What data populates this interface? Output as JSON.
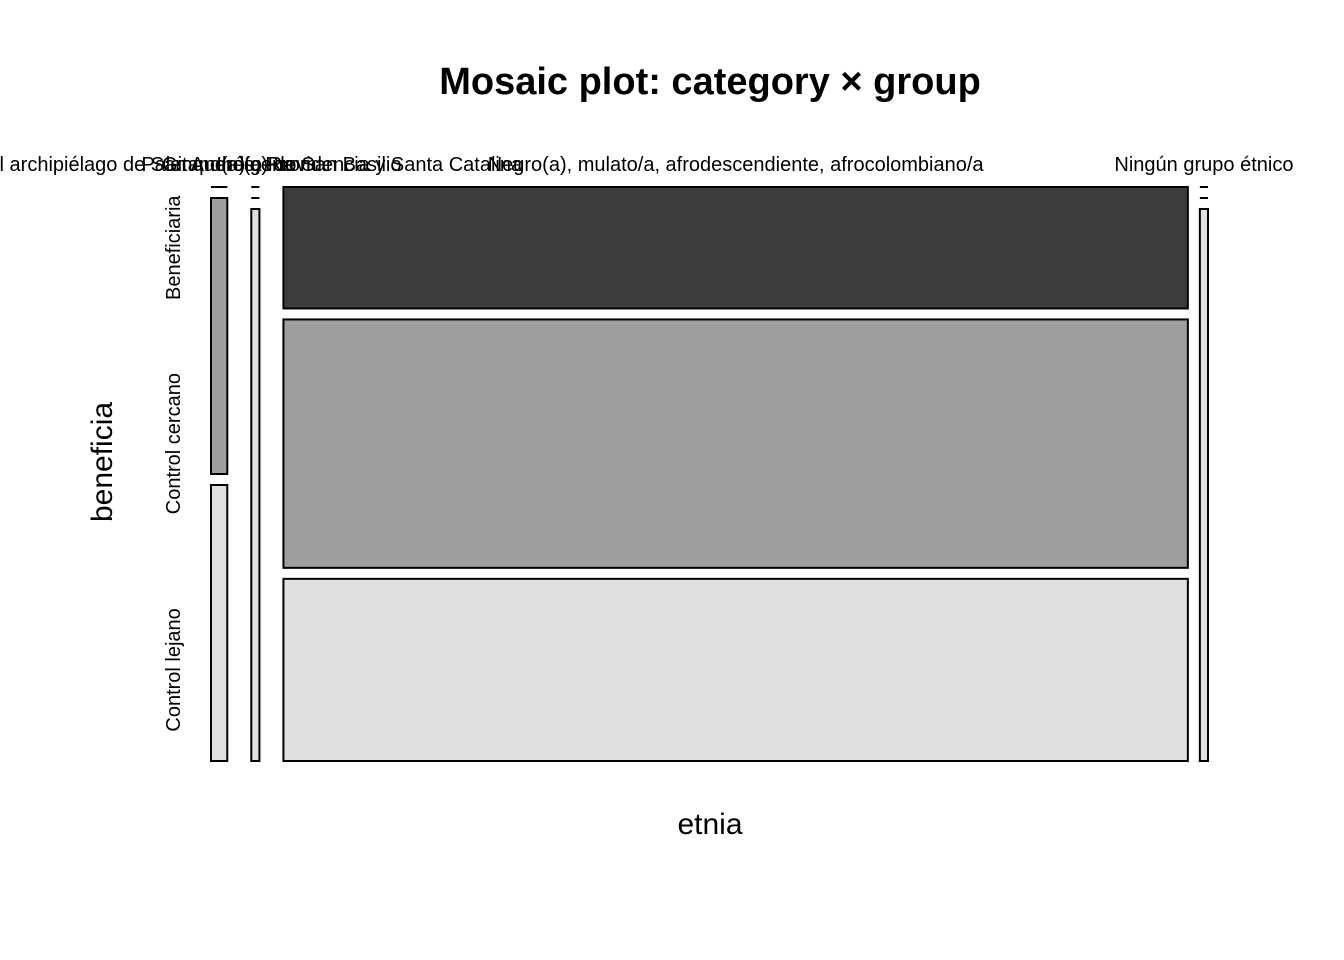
{
  "chart_data": {
    "type": "mosaic",
    "title": "Mosaic plot: category × group",
    "xlabel": "etnia",
    "ylabel": "beneficia",
    "x_categories": [
      "Raizal del archipiélago de San Andrés, Providencia y Santa Catalina",
      "Gitano(a) o Rrom",
      "Indígena",
      "Palenquero(a) de San Basilio",
      "Negro(a), mulato/a, afrodescendiente, afrocolombiano/a",
      "Ningún grupo étnico"
    ],
    "y_categories": [
      "Beneficiaria",
      "Control cercano",
      "Control lejano"
    ],
    "colors": [
      "#3d3d3d",
      "#9e9e9e",
      "#e0e0e0"
    ],
    "column_weights": [
      0.018,
      0.0,
      0.009,
      0.0,
      1.0,
      0.009
    ],
    "proportions": [
      [
        0.0,
        0.5,
        0.5
      ],
      [
        0.2,
        0.4,
        0.4
      ],
      [
        0.0,
        0.0,
        1.0
      ],
      [
        0.2,
        0.4,
        0.4
      ],
      [
        0.22,
        0.45,
        0.33
      ],
      [
        0.0,
        0.0,
        1.0
      ]
    ]
  }
}
